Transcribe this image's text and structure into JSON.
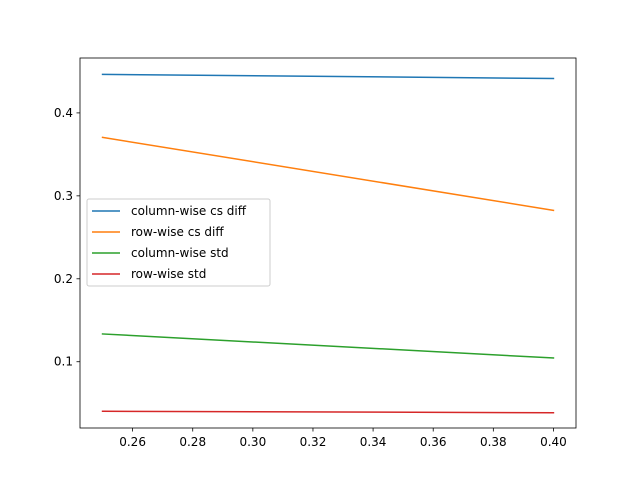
{
  "chart_data": {
    "type": "line",
    "title": "",
    "xlabel": "",
    "ylabel": "",
    "x": [
      0.25,
      0.4
    ],
    "xlim": [
      0.2425,
      0.4075
    ],
    "ylim": [
      0.0201,
      0.4662
    ],
    "xticks": [
      0.26,
      0.28,
      0.3,
      0.32,
      0.34,
      0.36,
      0.38,
      0.4
    ],
    "xtick_labels": [
      "0.26",
      "0.28",
      "0.30",
      "0.32",
      "0.34",
      "0.36",
      "0.38",
      "0.40"
    ],
    "yticks": [
      0.1,
      0.2,
      0.3,
      0.4
    ],
    "ytick_labels": [
      "0.1",
      "0.2",
      "0.3",
      "0.4"
    ],
    "grid": false,
    "legend_position": "center-left",
    "series": [
      {
        "name": "column-wise cs diff",
        "color": "#1f77b4",
        "values": [
          0.4465,
          0.4415
        ]
      },
      {
        "name": "row-wise cs diff",
        "color": "#ff7f0e",
        "values": [
          0.3705,
          0.2825
        ]
      },
      {
        "name": "column-wise std",
        "color": "#2ca02c",
        "values": [
          0.1335,
          0.1045
        ]
      },
      {
        "name": "row-wise std",
        "color": "#d62728",
        "values": [
          0.0403,
          0.0385
        ]
      }
    ]
  }
}
